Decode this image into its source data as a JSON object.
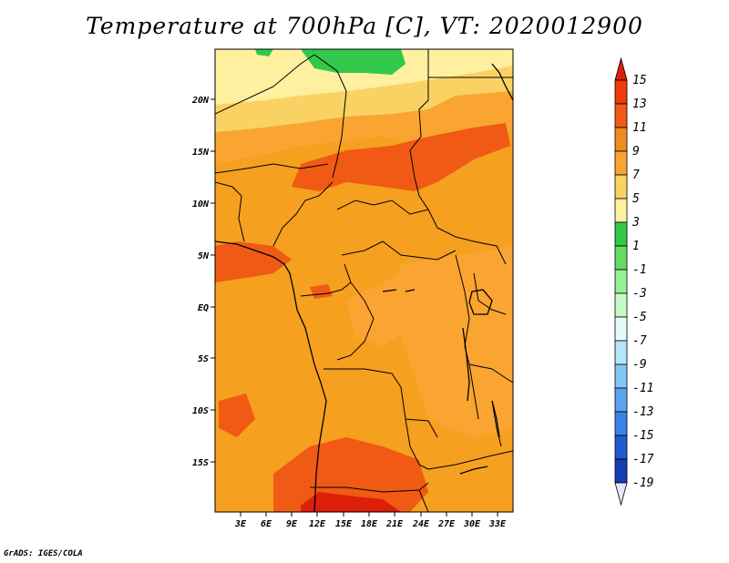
{
  "title": "Temperature at 700hPa [C], VT: 2020012900",
  "credit": "GrADS: IGES/COLA",
  "lat_labels": [
    "20N",
    "15N",
    "10N",
    "5N",
    "EQ",
    "5S",
    "10S",
    "15S"
  ],
  "lon_labels": [
    "3E",
    "6E",
    "9E",
    "12E",
    "15E",
    "18E",
    "21E",
    "24E",
    "27E",
    "30E",
    "33E"
  ],
  "colorbar": {
    "labels": [
      "15",
      "13",
      "11",
      "9",
      "7",
      "5",
      "3",
      "1",
      "-1",
      "-3",
      "-5",
      "-7",
      "-9",
      "-11",
      "-13",
      "-15",
      "-17",
      "-19"
    ],
    "colors": [
      "#dc1e0a",
      "#f03c0a",
      "#f05a14",
      "#f08c1e",
      "#faa532",
      "#fad264",
      "#fff0a0",
      "#32c84b",
      "#64dc64",
      "#96f096",
      "#c8fac8",
      "#e6fafa",
      "#b4e6fa",
      "#82c8f5",
      "#5aa5f0",
      "#3c82e6",
      "#1e5ad2",
      "#143cb4",
      "#0a1e8c",
      "#0a0a5a"
    ],
    "top_arrow_color": "#dc1e0a",
    "bottom_arrow_color": "#e6e6fa"
  },
  "palette": {
    "frame": "#000000",
    "base_warm": "#f5a01e",
    "cool_south": "#faa532",
    "hot": "#f05a14",
    "very_hot": "#dc1e0a",
    "cool": "#fad264",
    "coolest": "#fff0a0",
    "green": "#32c84b"
  }
}
